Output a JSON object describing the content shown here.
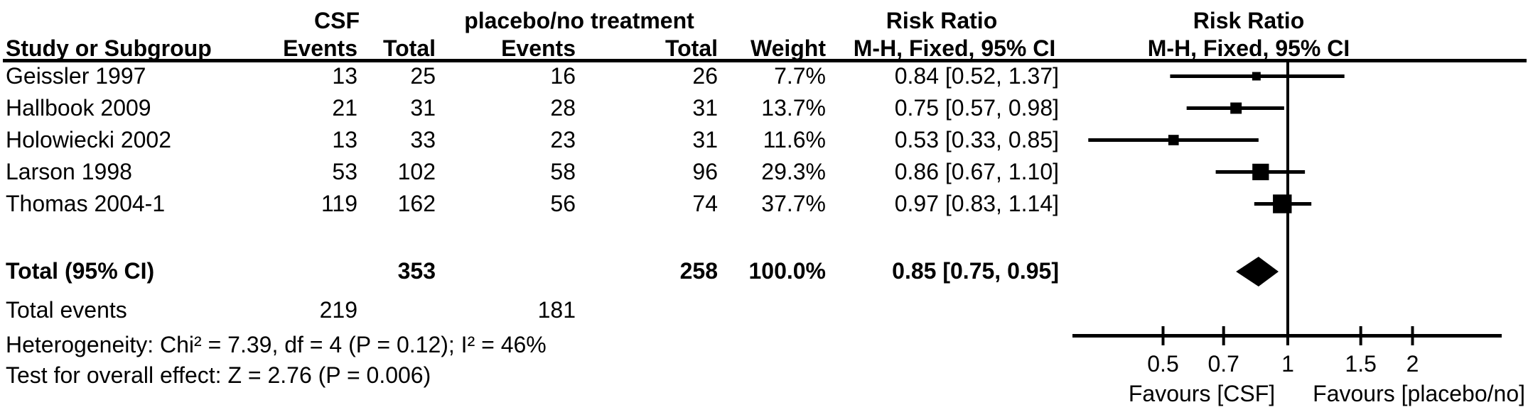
{
  "headers": {
    "group1": "CSF",
    "group2": "placebo/no treatment",
    "risk_ratio_left": "Risk Ratio",
    "risk_ratio_right": "Risk Ratio",
    "method_left": "M-H, Fixed, 95% CI",
    "method_right": "M-H, Fixed, 95% CI",
    "study": "Study or Subgroup",
    "events1": "Events",
    "total1": "Total",
    "events2": "Events",
    "total2": "Total",
    "weight": "Weight"
  },
  "rows": [
    {
      "study": "Geissler 1997",
      "events1": "13",
      "total1": "25",
      "events2": "16",
      "total2": "26",
      "weight": "7.7%",
      "rr_text": "0.84 [0.52, 1.37]"
    },
    {
      "study": "Hallbook 2009",
      "events1": "21",
      "total1": "31",
      "events2": "28",
      "total2": "31",
      "weight": "13.7%",
      "rr_text": "0.75 [0.57, 0.98]"
    },
    {
      "study": "Holowiecki 2002",
      "events1": "13",
      "total1": "33",
      "events2": "23",
      "total2": "31",
      "weight": "11.6%",
      "rr_text": "0.53 [0.33, 0.85]"
    },
    {
      "study": "Larson 1998",
      "events1": "53",
      "total1": "102",
      "events2": "58",
      "total2": "96",
      "weight": "29.3%",
      "rr_text": "0.86 [0.67, 1.10]"
    },
    {
      "study": "Thomas 2004-1",
      "events1": "119",
      "total1": "162",
      "events2": "56",
      "total2": "74",
      "weight": "37.7%",
      "rr_text": "0.97 [0.83, 1.14]"
    }
  ],
  "totals": {
    "label": "Total (95% CI)",
    "total1": "353",
    "total2": "258",
    "weight": "100.0%",
    "rr_text": "0.85 [0.75, 0.95]"
  },
  "total_events": {
    "label": "Total events",
    "events1": "219",
    "events2": "181"
  },
  "footnotes": {
    "heterogeneity": "Heterogeneity: Chi² = 7.39, df = 4 (P = 0.12); I² = 46%",
    "overall_effect": "Test for overall effect: Z = 2.76 (P = 0.006)"
  },
  "chart_data": {
    "type": "forest",
    "x_scale": "log10",
    "null_value": 1,
    "tick_values": [
      0.5,
      0.7,
      1,
      1.5,
      2
    ],
    "axis_ticks": [
      "0.5",
      "0.7",
      "1",
      "1.5",
      "2"
    ],
    "favours_left": "Favours [CSF]",
    "favours_right": "Favours [placebo/no]",
    "studies": [
      {
        "name": "Geissler 1997",
        "rr": 0.84,
        "ci_low": 0.52,
        "ci_high": 1.37,
        "weight_pct": 7.7
      },
      {
        "name": "Hallbook 2009",
        "rr": 0.75,
        "ci_low": 0.57,
        "ci_high": 0.98,
        "weight_pct": 13.7
      },
      {
        "name": "Holowiecki 2002",
        "rr": 0.53,
        "ci_low": 0.33,
        "ci_high": 0.85,
        "weight_pct": 11.6
      },
      {
        "name": "Larson 1998",
        "rr": 0.86,
        "ci_low": 0.67,
        "ci_high": 1.1,
        "weight_pct": 29.3
      },
      {
        "name": "Thomas 2004-1",
        "rr": 0.97,
        "ci_low": 0.83,
        "ci_high": 1.14,
        "weight_pct": 37.7
      }
    ],
    "total": {
      "rr": 0.85,
      "ci_low": 0.75,
      "ci_high": 0.95,
      "weight_pct": 100.0
    },
    "ink_color": "#000000"
  }
}
